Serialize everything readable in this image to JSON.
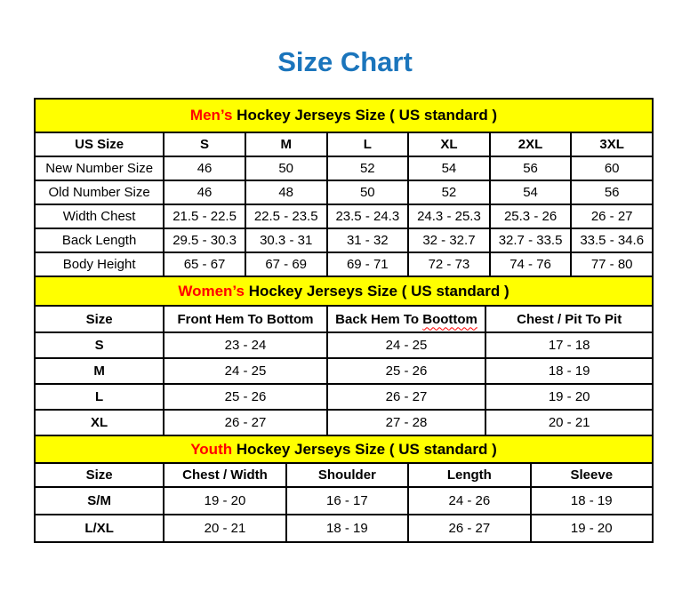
{
  "page": {
    "title": "Size Chart"
  },
  "colors": {
    "title": "#1B75BC",
    "accent_red": "#FF0000",
    "band_bg": "#FFFF00",
    "border": "#000000",
    "text": "#000000",
    "page_bg": "#FFFFFF"
  },
  "tables": {
    "mens": {
      "band": {
        "highlight": "Men’s",
        "rest": " Hockey Jerseys Size ( US standard )"
      },
      "columns": [
        "US Size",
        "S",
        "M",
        "L",
        "XL",
        "2XL",
        "3XL"
      ],
      "rows": [
        [
          "New Number Size",
          "46",
          "50",
          "52",
          "54",
          "56",
          "60"
        ],
        [
          "Old Number Size",
          "46",
          "48",
          "50",
          "52",
          "54",
          "56"
        ],
        [
          "Width Chest",
          "21.5 - 22.5",
          "22.5 - 23.5",
          "23.5 - 24.3",
          "24.3 - 25.3",
          "25.3 - 26",
          "26 - 27"
        ],
        [
          "Back Length",
          "29.5 - 30.3",
          "30.3 - 31",
          "31 - 32",
          "32 - 32.7",
          "32.7 - 33.5",
          "33.5 - 34.6"
        ],
        [
          "Body Height",
          "65 - 67",
          "67 - 69",
          "69 - 71",
          "72 - 73",
          "74 - 76",
          "77 - 80"
        ]
      ]
    },
    "womens": {
      "band": {
        "highlight": "Women’s",
        "rest": " Hockey Jerseys Size ( US standard )"
      },
      "columns": [
        "Size",
        "Front Hem To Bottom",
        "Back Hem To Boottom",
        "Chest / Pit To Pit"
      ],
      "squiggle_word": "Boottom",
      "rows": [
        [
          "S",
          "23 - 24",
          "24 - 25",
          "17 - 18"
        ],
        [
          "M",
          "24 - 25",
          "25 - 26",
          "18 - 19"
        ],
        [
          "L",
          "25 - 26",
          "26 - 27",
          "19 - 20"
        ],
        [
          "XL",
          "26 - 27",
          "27 - 28",
          "20 - 21"
        ]
      ]
    },
    "youth": {
      "band": {
        "highlight": "Youth",
        "rest": " Hockey Jerseys Size ( US standard )"
      },
      "columns": [
        "Size",
        "Chest / Width",
        "Shoulder",
        "Length",
        "Sleeve"
      ],
      "rows": [
        [
          "S/M",
          "19 - 20",
          "16 - 17",
          "24 - 26",
          "18 - 19"
        ],
        [
          "L/XL",
          "20 - 21",
          "18 - 19",
          "26 - 27",
          "19 - 20"
        ]
      ]
    }
  }
}
